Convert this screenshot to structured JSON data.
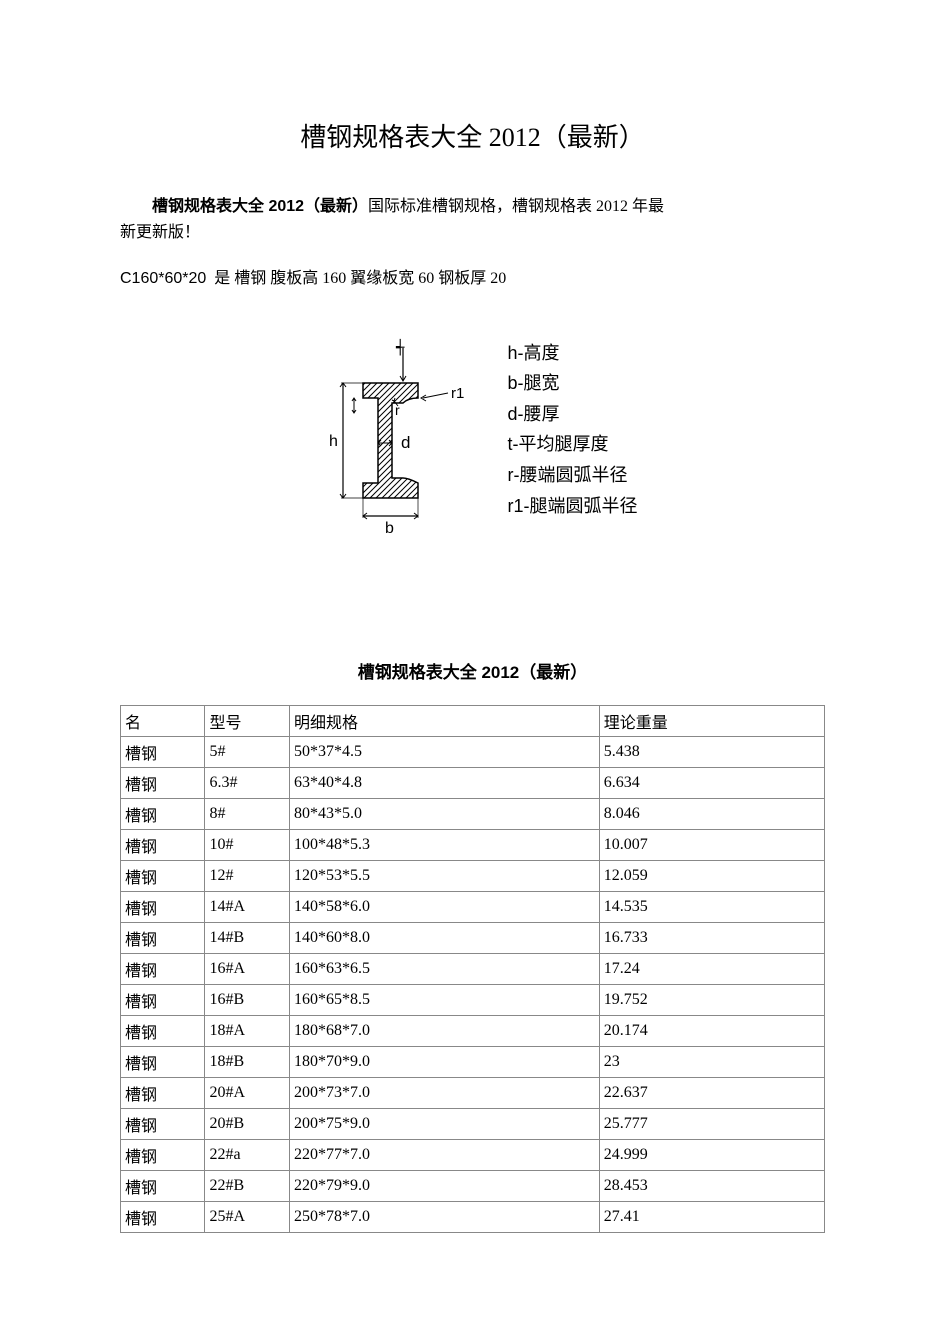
{
  "title": "槽钢规格表大全 2012（最新）",
  "intro": {
    "bold": "槽钢规格表大全 2012（最新）",
    "rest1": "国际标准槽钢规格，槽钢规格表 2012 年最",
    "rest2": "新更新版！"
  },
  "spec_line": {
    "code": "C160*60*20",
    "mid": "是 槽钢 腹板高 160  翼缘板宽 60   钢板厚 20"
  },
  "diagram": {
    "stroke": "#000000",
    "hatch": "#000000",
    "bg": "#ffffff",
    "label_r": "r",
    "label_r1": "r1",
    "label_d": "d",
    "label_b": "b",
    "label_h": "h"
  },
  "legend": {
    "h": "h-高度",
    "b": "b-腿宽",
    "d": "d-腰厚",
    "t": "t-平均腿厚度",
    "r": "r-腰端圆弧半径",
    "r1": "r1-腿端圆弧半径"
  },
  "table_title": "槽钢规格表大全 2012（最新）",
  "table": {
    "columns": [
      "名",
      "型号",
      "明细规格",
      "理论重量"
    ],
    "col_widths_pct": [
      12,
      12,
      44,
      32
    ],
    "border_color": "#888888",
    "text_color": "#000000",
    "bg": "#ffffff",
    "rows": [
      [
        "槽钢",
        "5#",
        "50*37*4.5",
        "5.438"
      ],
      [
        "槽钢",
        "6.3#",
        "63*40*4.8",
        "6.634"
      ],
      [
        "槽钢",
        "8#",
        "80*43*5.0",
        "8.046"
      ],
      [
        "槽钢",
        "10#",
        "100*48*5.3",
        "10.007"
      ],
      [
        "槽钢",
        "12#",
        "120*53*5.5",
        "12.059"
      ],
      [
        "槽钢",
        "14#A",
        "140*58*6.0",
        "14.535"
      ],
      [
        "槽钢",
        "14#B",
        "140*60*8.0",
        "16.733"
      ],
      [
        "槽钢",
        "16#A",
        "160*63*6.5",
        "17.24"
      ],
      [
        "槽钢",
        "16#B",
        "160*65*8.5",
        "19.752"
      ],
      [
        "槽钢",
        "18#A",
        "180*68*7.0",
        "20.174"
      ],
      [
        "槽钢",
        "18#B",
        "180*70*9.0",
        "23"
      ],
      [
        "槽钢",
        "20#A",
        "200*73*7.0",
        "22.637"
      ],
      [
        "槽钢",
        "20#B",
        "200*75*9.0",
        "25.777"
      ],
      [
        "槽钢",
        "22#a",
        "220*77*7.0",
        "24.999"
      ],
      [
        "槽钢",
        "22#B",
        "220*79*9.0",
        "28.453"
      ],
      [
        "槽钢",
        "25#A",
        "250*78*7.0",
        "27.41"
      ]
    ]
  }
}
